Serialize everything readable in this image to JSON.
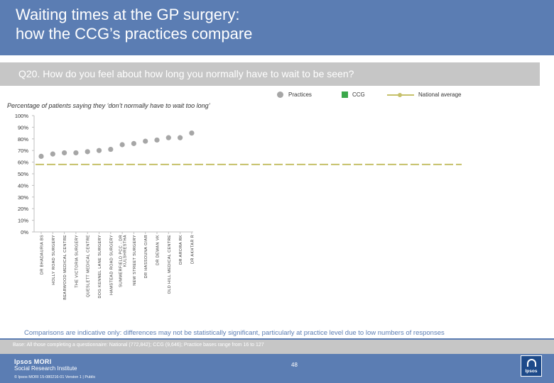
{
  "header": {
    "title_line1": "Waiting times at the GP surgery:",
    "title_line2": "how the CCG’s practices compare"
  },
  "question": "Q20. How do you feel about how long you normally have to wait to be seen?",
  "legend": {
    "practices": "Practices",
    "ccg": "CCG",
    "national": "National average"
  },
  "colors": {
    "practices": "#a6a6a6",
    "ccg": "#3ba84b",
    "national": "#c6c06a",
    "brand": "#5b7db3"
  },
  "chart_data": {
    "type": "scatter",
    "title": "Percentage of patients saying they ‘don’t normally have to wait too long’",
    "xlabel": "",
    "ylabel": "",
    "ylim": [
      0,
      100
    ],
    "yticks": [
      0,
      10,
      20,
      30,
      40,
      50,
      60,
      70,
      80,
      90,
      100
    ],
    "ytick_suffix": "%",
    "grid": false,
    "categories": [
      "DR BHADAURIA BS",
      "HOLLY ROAD SURGERY",
      "BEARWOOD MEDICAL CENTRE",
      "THE VICTORIA SURGERY",
      "QUESLETT MEDICAL CENTRE",
      "DOG KENNEL LANE SURGERY",
      "HAMSTEAD ROAD SURGERY",
      "SUMMERFIELD PCC - DR KULSHRESTHA",
      "NEW STREET SURGERY",
      "DR HASSOUNA O/AR",
      "DR DEWAN VK",
      "OLD HILL MEDICAL CENTRE",
      "DR ARORA RK",
      "DR AKHTAR R"
    ],
    "series": [
      {
        "name": "Practices",
        "values": [
          65,
          67,
          68,
          68,
          69,
          70,
          71,
          75,
          76,
          78,
          79,
          81,
          81,
          85
        ]
      }
    ],
    "national_average": 58
  },
  "note": "Comparisons are indicative only: differences may not be statistically significant, particularly at practice level due to low numbers of responses",
  "footer": {
    "base": "Base: All those completing a questionnaire: National (772,842); CCG (9,646); Practice bases range from 16 to 127",
    "logo_line1": "Ipsos MORI",
    "logo_line2": "Social Research Institute",
    "page_number": "48",
    "copyright": "© Ipsos MORI     15-080216-01 Version 1 | Public",
    "badge": "Ipsos"
  }
}
